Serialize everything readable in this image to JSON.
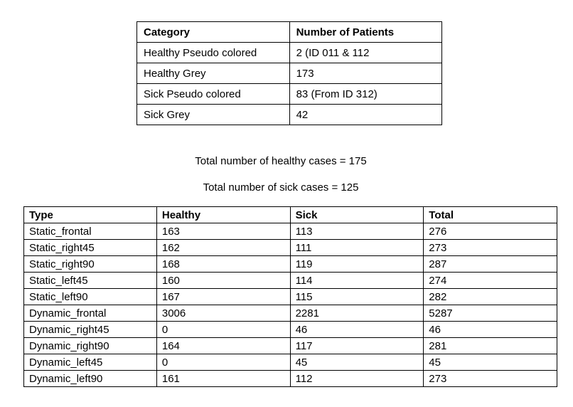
{
  "patients_table": {
    "headers": [
      "Category",
      "Number of Patients"
    ],
    "rows": [
      [
        "Healthy Pseudo colored",
        "2 (ID 011 & 112"
      ],
      [
        "Healthy Grey",
        "173"
      ],
      [
        "Sick Pseudo colored",
        "83 (From ID 312)"
      ],
      [
        "Sick Grey",
        "42"
      ]
    ]
  },
  "summary": {
    "healthy": "Total number of healthy cases = 175",
    "sick": "Total number of sick cases = 125"
  },
  "types_table": {
    "headers": [
      "Type",
      "Healthy",
      "Sick",
      "Total"
    ],
    "rows": [
      [
        "Static_frontal",
        "163",
        "113",
        "276"
      ],
      [
        "Static_right45",
        "162",
        "111",
        "273"
      ],
      [
        "Static_right90",
        "168",
        "119",
        "287"
      ],
      [
        "Static_left45",
        "160",
        "114",
        "274"
      ],
      [
        "Static_left90",
        "167",
        "115",
        "282"
      ],
      [
        "Dynamic_frontal",
        "3006",
        "2281",
        "5287"
      ],
      [
        "Dynamic_right45",
        "0",
        "46",
        "46"
      ],
      [
        "Dynamic_right90",
        "164",
        "117",
        "281"
      ],
      [
        "Dynamic_left45",
        "0",
        "45",
        "45"
      ],
      [
        "Dynamic_left90",
        "161",
        "112",
        "273"
      ]
    ]
  }
}
